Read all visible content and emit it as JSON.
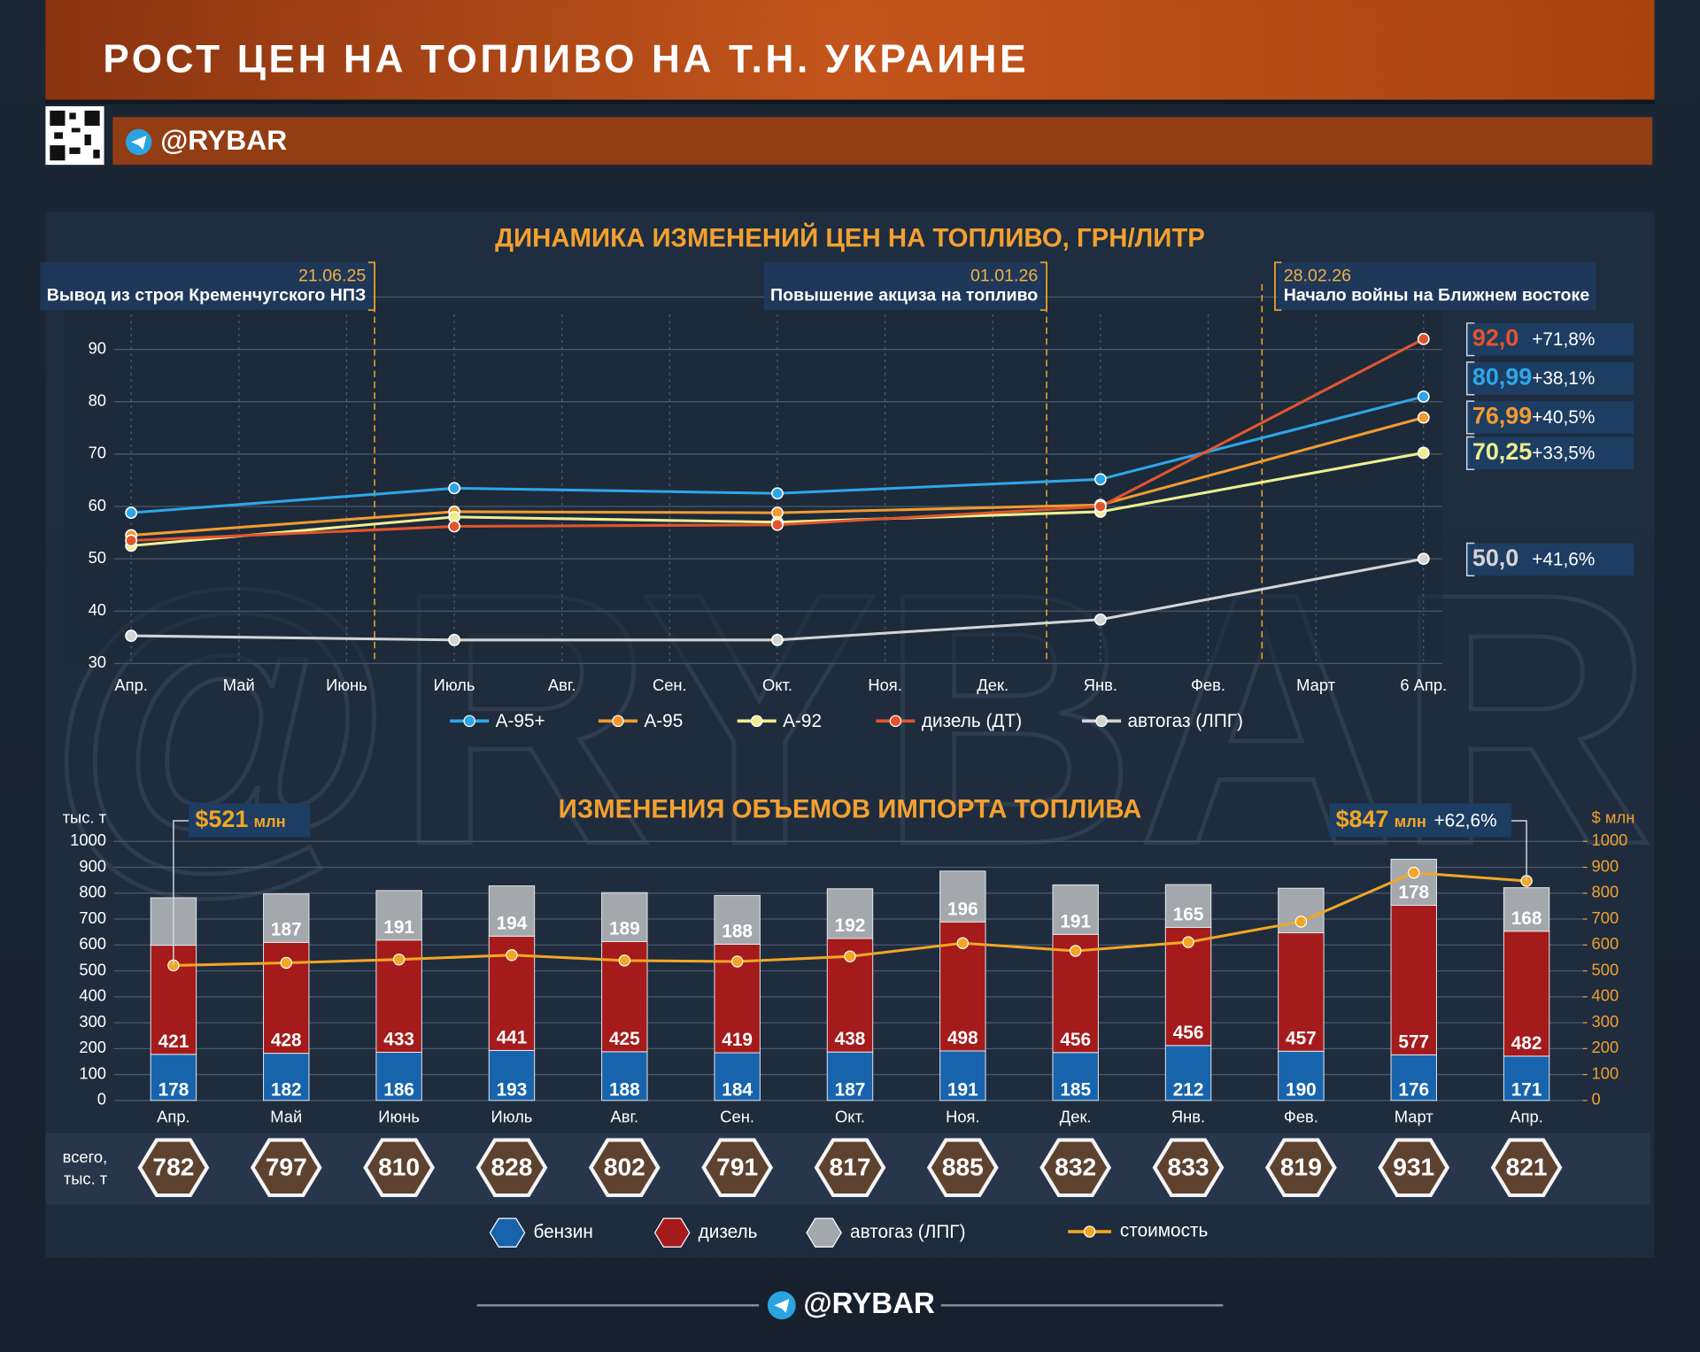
{
  "header": {
    "title": "РОСТ ЦЕН НА ТОПЛИВО НА Т.Н. УКРАИНЕ",
    "handle": "@RYBAR"
  },
  "footer": {
    "handle": "@RYBAR"
  },
  "chart_data": [
    {
      "type": "line",
      "title": "ДИНАМИКА ИЗМЕНЕНИЙ ЦЕН НА ТОПЛИВО, ГРН/ЛИТР",
      "categories": [
        "Апр.",
        "Май",
        "Июнь",
        "Июль",
        "Авг.",
        "Сен.",
        "Окт.",
        "Ноя.",
        "Дек.",
        "Янв.",
        "Фев.",
        "Март",
        "6 Апр."
      ],
      "ylim": [
        30,
        100
      ],
      "yticks": [
        30,
        40,
        50,
        60,
        70,
        80,
        90
      ],
      "grid": true,
      "legend": "bottom",
      "events": [
        {
          "date": "21.06.25",
          "label": "Вывод из строя Кременчугского НПЗ"
        },
        {
          "date": "01.01.26",
          "label": "Повышение акциза на топливо"
        },
        {
          "date": "28.02.26",
          "label": "Начало войны на Ближнем востоке"
        }
      ],
      "series": [
        {
          "name": "А-95+",
          "color": "#2ea6e6",
          "values": [
            58.8,
            null,
            null,
            63.5,
            null,
            null,
            62.5,
            null,
            null,
            65.2,
            null,
            null,
            80.99
          ],
          "value_labels": [
            null,
            null,
            null,
            null,
            null,
            null,
            null,
            null,
            null,
            null,
            null,
            null,
            "80,99"
          ],
          "change_label": "+38,1%"
        },
        {
          "name": "А-95",
          "color": "#f29a2e",
          "values": [
            54.5,
            null,
            null,
            59.0,
            null,
            null,
            58.8,
            null,
            null,
            60.3,
            null,
            null,
            76.99
          ],
          "value_labels": [
            null,
            null,
            null,
            null,
            null,
            null,
            null,
            null,
            null,
            null,
            null,
            null,
            "76,99"
          ],
          "change_label": "+40,5%"
        },
        {
          "name": "А-92",
          "color": "#eeee90",
          "values": [
            52.5,
            null,
            null,
            58.0,
            null,
            null,
            57.0,
            null,
            null,
            59.0,
            null,
            null,
            70.25
          ],
          "value_labels": [
            null,
            null,
            null,
            null,
            null,
            null,
            null,
            null,
            null,
            null,
            null,
            null,
            "70,25"
          ],
          "change_label": "+33,5%"
        },
        {
          "name": "дизель (ДТ)",
          "color": "#e2552c",
          "values": [
            53.5,
            null,
            null,
            56.2,
            null,
            null,
            56.5,
            null,
            null,
            60.0,
            null,
            null,
            92.0
          ],
          "value_labels": [
            null,
            null,
            null,
            null,
            null,
            null,
            null,
            null,
            null,
            null,
            null,
            null,
            "92,0"
          ],
          "change_label": "+71,8%"
        },
        {
          "name": "автогаз (ЛПГ)",
          "color": "#d4d4d4",
          "values": [
            35.3,
            null,
            null,
            34.5,
            null,
            null,
            34.5,
            null,
            null,
            38.4,
            null,
            null,
            50.0
          ],
          "value_labels": [
            null,
            null,
            null,
            null,
            null,
            null,
            null,
            null,
            null,
            null,
            null,
            null,
            "50,0"
          ],
          "change_label": "+41,6%"
        }
      ]
    },
    {
      "type": "bar",
      "stacked": true,
      "title": "ИЗМЕНЕНИЯ ОБЪЕМОВ ИМПОРТА ТОПЛИВА",
      "ylabel": "тыс. т",
      "y2label": "$ млн",
      "categories": [
        "Апр.",
        "Май",
        "Июнь",
        "Июль",
        "Авг.",
        "Сен.",
        "Окт.",
        "Ноя.",
        "Дек.",
        "Янв.",
        "Фев.",
        "Март",
        "Апр."
      ],
      "ylim": [
        0,
        1000
      ],
      "yticks": [
        0,
        100,
        200,
        300,
        400,
        500,
        600,
        700,
        800,
        900,
        1000
      ],
      "y2lim": [
        0,
        1000
      ],
      "y2ticks": [
        0,
        100,
        200,
        300,
        400,
        500,
        600,
        700,
        800,
        900,
        1000
      ],
      "grid": true,
      "legend": "bottom",
      "series": [
        {
          "name": "бензин",
          "color": "#1764ad",
          "values": [
            178,
            182,
            186,
            193,
            188,
            184,
            187,
            191,
            185,
            212,
            190,
            176,
            171
          ]
        },
        {
          "name": "дизель",
          "color": "#a51a1a",
          "values": [
            421,
            428,
            433,
            441,
            425,
            419,
            438,
            498,
            456,
            456,
            457,
            577,
            482
          ]
        },
        {
          "name": "автогаз (ЛПГ)",
          "color": "#a4a8ad",
          "values": [
            183,
            187,
            191,
            194,
            189,
            188,
            192,
            196,
            191,
            165,
            172,
            178,
            168
          ],
          "value_labels": [
            null,
            "187",
            "191",
            "194",
            "189",
            "188",
            "192",
            "196",
            "191",
            "165",
            null,
            "178",
            "168"
          ]
        },
        {
          "name": "стоимость",
          "type": "line",
          "axis": "y2",
          "color": "#f2a624",
          "values": [
            521,
            531,
            544,
            561,
            540,
            536,
            556,
            607,
            577,
            611,
            690,
            879,
            847
          ],
          "value_labels": [
            "$521",
            null,
            null,
            null,
            null,
            null,
            null,
            null,
            null,
            null,
            null,
            null,
            "$847"
          ],
          "value_unit": "млн",
          "change_label": "+62,6%"
        }
      ],
      "totals": {
        "label": "всего, тыс. т",
        "values": [
          782,
          797,
          810,
          828,
          802,
          791,
          817,
          885,
          832,
          833,
          819,
          931,
          821
        ]
      }
    }
  ]
}
